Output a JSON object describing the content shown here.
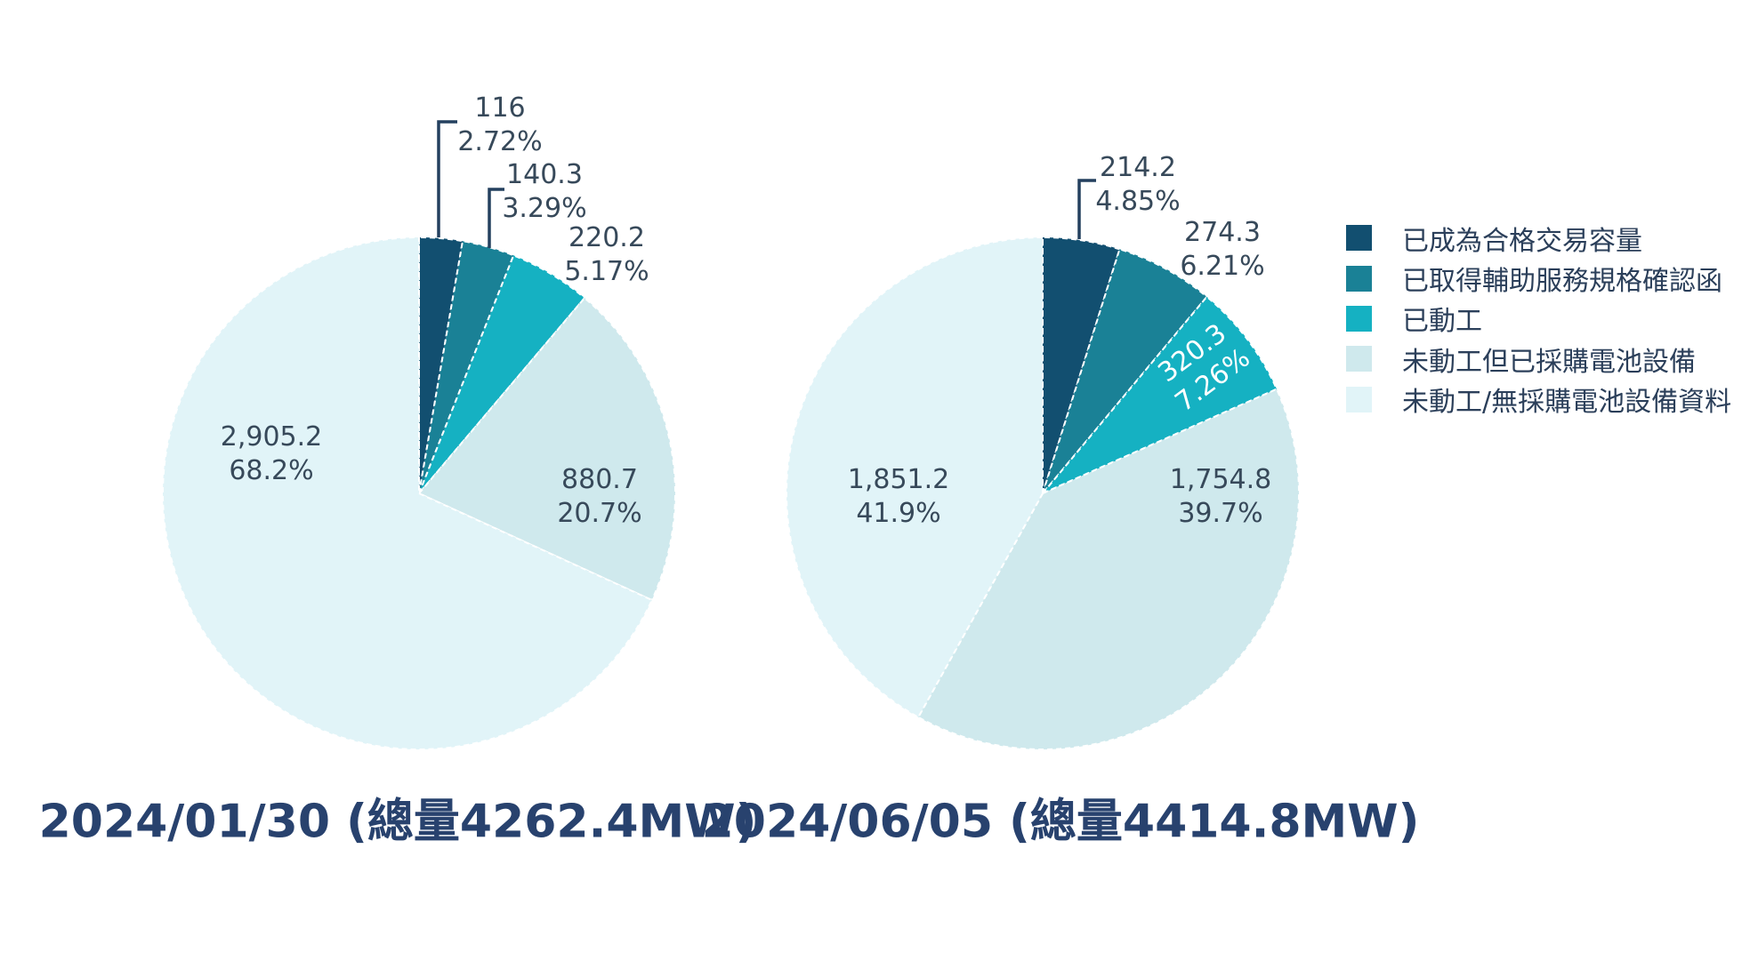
{
  "legend": {
    "items": [
      {
        "label": "已成為合格交易容量",
        "color": "#124f70"
      },
      {
        "label": "已取得輔助服務規格確認函",
        "color": "#1a8196"
      },
      {
        "label": "已動工",
        "color": "#15b1c2"
      },
      {
        "label": "未動工但已採購電池設備",
        "color": "#cfe9ed"
      },
      {
        "label": "未動工/無採購電池設備資料",
        "color": "#e1f4f8"
      }
    ]
  },
  "chart_data": [
    {
      "type": "pie",
      "date": "2024/01/30",
      "total_mw": 4262.4,
      "caption": "2024/01/30 (總量4262.4MW)",
      "unit": "MW",
      "slices": [
        {
          "name": "已成為合格交易容量",
          "value": 116,
          "pct": 2.72,
          "value_label": "116",
          "pct_label": "2.72%"
        },
        {
          "name": "已取得輔助服務規格確認函",
          "value": 140.3,
          "pct": 3.29,
          "value_label": "140.3",
          "pct_label": "3.29%"
        },
        {
          "name": "已動工",
          "value": 220.2,
          "pct": 5.17,
          "value_label": "220.2",
          "pct_label": "5.17%"
        },
        {
          "name": "未動工但已採購電池設備",
          "value": 880.7,
          "pct": 20.7,
          "value_label": "880.7",
          "pct_label": "20.7%"
        },
        {
          "name": "未動工/無採購電池設備資料",
          "value": 2905.2,
          "pct": 68.2,
          "value_label": "2,905.2",
          "pct_label": "68.2%"
        }
      ]
    },
    {
      "type": "pie",
      "date": "2024/06/05",
      "total_mw": 4414.8,
      "caption": "2024/06/05 (總量4414.8MW)",
      "unit": "MW",
      "slices": [
        {
          "name": "已成為合格交易容量",
          "value": 214.2,
          "pct": 4.85,
          "value_label": "214.2",
          "pct_label": "4.85%"
        },
        {
          "name": "已取得輔助服務規格確認函",
          "value": 274.3,
          "pct": 6.21,
          "value_label": "274.3",
          "pct_label": "6.21%"
        },
        {
          "name": "已動工",
          "value": 320.3,
          "pct": 7.26,
          "value_label": "320.3",
          "pct_label": "7.26%"
        },
        {
          "name": "未動工但已採購電池設備",
          "value": 1754.8,
          "pct": 39.7,
          "value_label": "1,754.8",
          "pct_label": "39.7%"
        },
        {
          "name": "未動工/無採購電池設備資料",
          "value": 1851.2,
          "pct": 41.9,
          "value_label": "1,851.2",
          "pct_label": "41.9%"
        }
      ]
    }
  ],
  "colors": {
    "background": "#ffffff",
    "label_text": "#37495a",
    "inner_label_white": "#ffffff",
    "caption_text": "#28426e",
    "leader_line": "#24405f",
    "legend_text": "#2b3f5a"
  }
}
